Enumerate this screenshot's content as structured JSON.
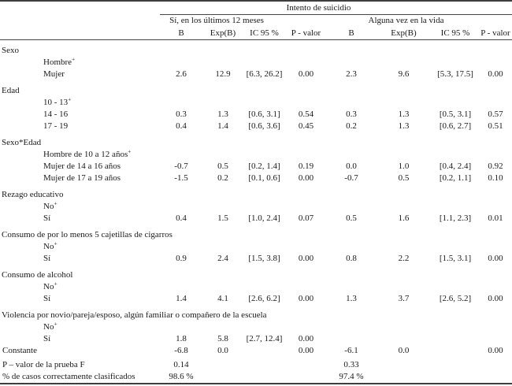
{
  "page": {
    "background": "#ffffff",
    "text_color": "#1a1a1a",
    "rule_color": "#3e3e3e"
  },
  "table": {
    "span_title": "Intento de suicidio",
    "groups": [
      {
        "label": "Sí, en los últimos 12 meses"
      },
      {
        "label": "Alguna vez en la vida"
      }
    ],
    "col_headers": [
      "B",
      "Exp(B)",
      "IC 95 %",
      "P - valor",
      "B",
      "Exp(B)",
      "IC 95 %",
      "P - valor"
    ],
    "reference_marker": "+",
    "rows": [
      {
        "type": "section",
        "label": "Sexo"
      },
      {
        "type": "item",
        "label": "Hombre",
        "sup": "+",
        "cells": [
          "",
          "",
          "",
          "",
          "",
          "",
          "",
          ""
        ]
      },
      {
        "type": "item",
        "label": "Mujer",
        "cells": [
          "2.6",
          "12.9",
          "[6.3, 26.2]",
          "0.00",
          "2.3",
          "9.6",
          "[5.3, 17.5]",
          "0.00"
        ]
      },
      {
        "type": "section",
        "label": "Edad"
      },
      {
        "type": "item",
        "label": "10 - 13",
        "sup": "+",
        "cells": [
          "",
          "",
          "",
          "",
          "",
          "",
          "",
          ""
        ]
      },
      {
        "type": "item",
        "label": "14 - 16",
        "cells": [
          "0.3",
          "1.3",
          "[0.6, 3.1]",
          "0.54",
          "0.3",
          "1.3",
          "[0.5, 3.1]",
          "0.57"
        ]
      },
      {
        "type": "item",
        "label": "17 - 19",
        "cells": [
          "0.4",
          "1.4",
          "[0.6, 3.6]",
          "0.45",
          "0.2",
          "1.3",
          "[0.6, 2.7]",
          "0.51"
        ]
      },
      {
        "type": "section",
        "label": "Sexo*Edad"
      },
      {
        "type": "item",
        "label": "Hombre de 10 a 12 años",
        "sup": "+",
        "cells": [
          "",
          "",
          "",
          "",
          "",
          "",
          "",
          ""
        ]
      },
      {
        "type": "item",
        "label": "Mujer de 14 a 16 años",
        "cells": [
          "-0.7",
          "0.5",
          "[0.2, 1.4]",
          "0.19",
          "0.0",
          "1.0",
          "[0.4, 2.4]",
          "0.92"
        ]
      },
      {
        "type": "item",
        "label": "Mujer de 17 a 19 años",
        "cells": [
          "-1.5",
          "0.2",
          "[0.1, 0.6]",
          "0.00",
          "-0.7",
          "0.5",
          "[0.2, 1.1]",
          "0.10"
        ]
      },
      {
        "type": "section",
        "label": "Rezago educativo"
      },
      {
        "type": "item",
        "label": "No",
        "sup": "+",
        "cells": [
          "",
          "",
          "",
          "",
          "",
          "",
          "",
          ""
        ]
      },
      {
        "type": "item",
        "label": "Sí",
        "cells": [
          "0.4",
          "1.5",
          "[1.0, 2.4]",
          "0.07",
          "0.5",
          "1.6",
          "[1.1, 2.3]",
          "0.01"
        ]
      },
      {
        "type": "section",
        "label": "Consumo de por lo menos 5 cajetillas de cigarros"
      },
      {
        "type": "item",
        "label": "No",
        "sup": "+",
        "cells": [
          "",
          "",
          "",
          "",
          "",
          "",
          "",
          ""
        ]
      },
      {
        "type": "item",
        "label": "Sí",
        "cells": [
          "0.9",
          "2.4",
          "[1.5, 3.8]",
          "0.00",
          "0.8",
          "2.2",
          "[1.5, 3.1]",
          "0.00"
        ]
      },
      {
        "type": "section",
        "label": "Consumo de alcohol"
      },
      {
        "type": "item",
        "label": "No",
        "sup": "+",
        "cells": [
          "",
          "",
          "",
          "",
          "",
          "",
          "",
          ""
        ]
      },
      {
        "type": "item",
        "label": "Sí",
        "cells": [
          "1.4",
          "4.1",
          "[2.6, 6.2]",
          "0.00",
          "1.3",
          "3.7",
          "[2.6, 5.2]",
          "0.00"
        ]
      },
      {
        "type": "section",
        "label": "Violencia por novio/pareja/esposo, algún familiar o compañero de la escuela"
      },
      {
        "type": "item",
        "label": "No",
        "sup": "+",
        "cells": [
          "",
          "",
          "",
          "",
          "",
          "",
          "",
          ""
        ]
      },
      {
        "type": "item",
        "label": "Sí",
        "cells": [
          "1.8",
          "5.8",
          "[2.7, 12.4]",
          "0.00",
          "",
          "",
          "",
          ""
        ]
      },
      {
        "type": "stat",
        "label": "Constante",
        "cells": [
          "-6.8",
          "0.0",
          "",
          "0.00",
          "-6.1",
          "0.0",
          "",
          "0.00"
        ]
      },
      {
        "type": "stat",
        "label": "P – valor de la prueba F",
        "gap": true,
        "cells": [
          "0.14",
          "",
          "",
          "",
          "0.33",
          "",
          "",
          ""
        ]
      },
      {
        "type": "stat",
        "label": "% de casos correctamente clasificados",
        "cells": [
          "98.6 %",
          "",
          "",
          "",
          "97.4 %",
          "",
          "",
          ""
        ]
      }
    ]
  }
}
